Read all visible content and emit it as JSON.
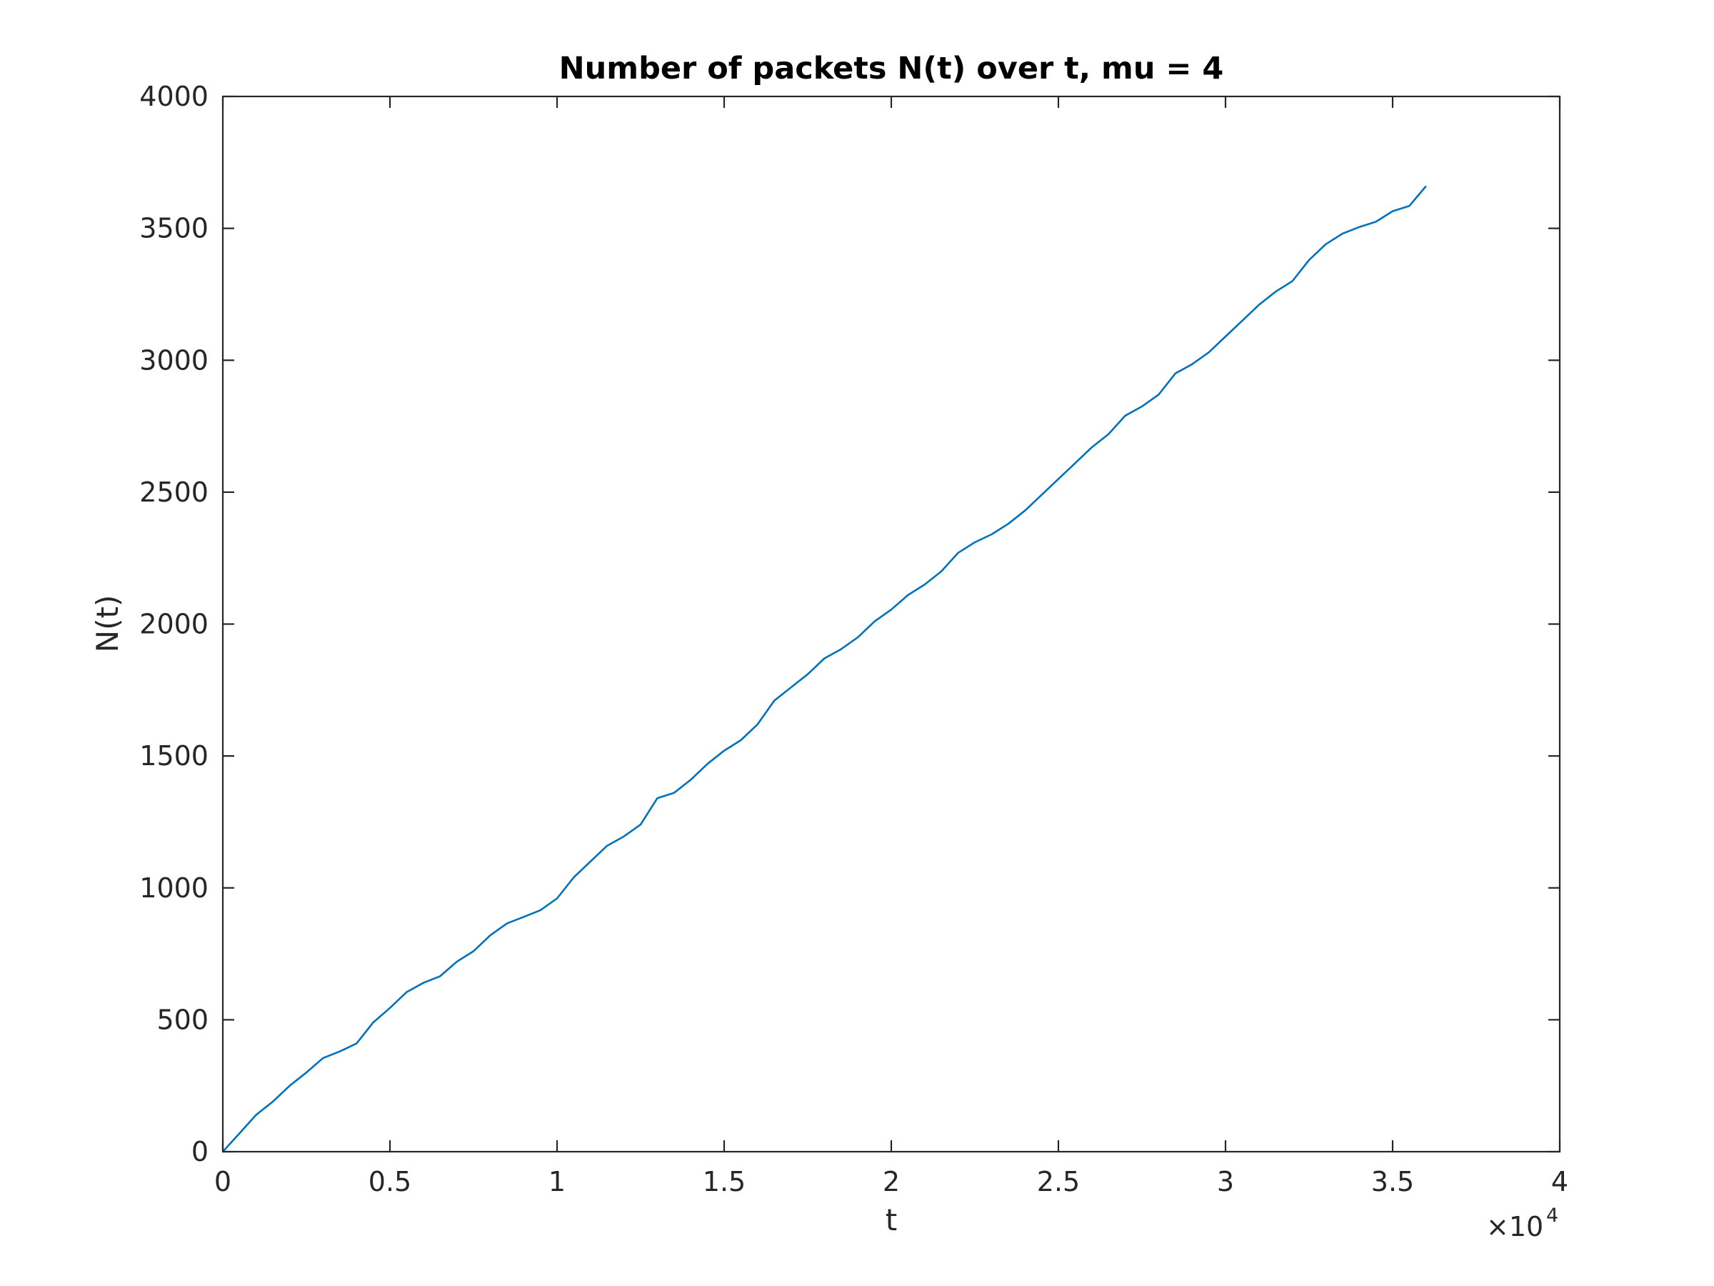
{
  "chart_data": {
    "type": "line",
    "title": "Number of packets N(t) over t, mu = 4",
    "xlabel": "t",
    "ylabel": "N(t)",
    "xlim": [
      0,
      40000
    ],
    "ylim": [
      0,
      4000
    ],
    "x_tick_values": [
      0,
      5000,
      10000,
      15000,
      20000,
      25000,
      30000,
      35000,
      40000
    ],
    "x_tick_labels": [
      "0",
      "0.5",
      "1",
      "1.5",
      "2",
      "2.5",
      "3",
      "3.5",
      "4"
    ],
    "x_exponent": {
      "prefix": "×10",
      "power": "4"
    },
    "y_tick_values": [
      0,
      500,
      1000,
      1500,
      2000,
      2500,
      3000,
      3500,
      4000
    ],
    "y_tick_labels": [
      "0",
      "500",
      "1000",
      "1500",
      "2000",
      "2500",
      "3000",
      "3500",
      "4000"
    ],
    "grid": false,
    "series": [
      {
        "name": "N(t)",
        "color": "#0072BD",
        "x": [
          0,
          500,
          1000,
          1500,
          2000,
          2500,
          3000,
          3500,
          4000,
          4500,
          5000,
          5500,
          6000,
          6500,
          7000,
          7500,
          8000,
          8500,
          9000,
          9500,
          10000,
          10500,
          11000,
          11500,
          12000,
          12500,
          13000,
          13500,
          14000,
          14500,
          15000,
          15500,
          16000,
          16500,
          17000,
          17500,
          18000,
          18500,
          19000,
          19500,
          20000,
          20500,
          21000,
          21500,
          22000,
          22500,
          23000,
          23500,
          24000,
          24500,
          25000,
          25500,
          26000,
          26500,
          27000,
          27500,
          28000,
          28500,
          29000,
          29500,
          30000,
          30500,
          31000,
          31500,
          32000,
          32500,
          33000,
          33500,
          34000,
          34500,
          35000,
          35500,
          36000
        ],
        "y": [
          0,
          70,
          140,
          190,
          250,
          300,
          355,
          380,
          410,
          490,
          545,
          605,
          640,
          665,
          720,
          760,
          820,
          865,
          890,
          915,
          960,
          1040,
          1100,
          1160,
          1195,
          1240,
          1340,
          1360,
          1410,
          1470,
          1520,
          1560,
          1620,
          1710,
          1760,
          1810,
          1870,
          1905,
          1950,
          2010,
          2055,
          2110,
          2150,
          2200,
          2270,
          2310,
          2340,
          2380,
          2430,
          2490,
          2550,
          2610,
          2670,
          2720,
          2790,
          2825,
          2870,
          2950,
          2985,
          3030,
          3090,
          3150,
          3210,
          3260,
          3300,
          3380,
          3440,
          3480,
          3505,
          3525,
          3565,
          3585,
          3660
        ]
      }
    ]
  }
}
